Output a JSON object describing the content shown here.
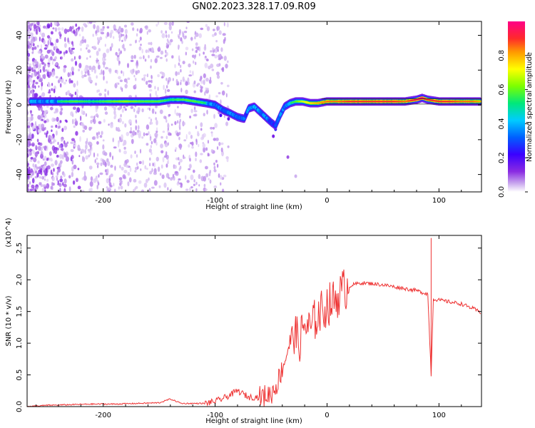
{
  "title": "GN02.2023.328.17.09.R09",
  "chart_data": [
    {
      "type": "heatmap",
      "xlabel": "Height of straight line (km)",
      "ylabel": "Frequency (Hz)",
      "xlim": [
        -268,
        138
      ],
      "ylim": [
        -50,
        48
      ],
      "x_ticks": [
        -200,
        -100,
        0,
        100
      ],
      "y_ticks": [
        -40,
        -20,
        0,
        20,
        40
      ],
      "colorbar": {
        "label": "Normalized spectral amplitude",
        "range": [
          0.0,
          1.0
        ],
        "ticks": [
          "0.0",
          "0.2",
          "0.4",
          "0.6",
          "0.8"
        ],
        "colormap": [
          "#ffffff",
          "#c9a8ee",
          "#8a2be2",
          "#3a00ff",
          "#0060ff",
          "#00ccff",
          "#00e87a",
          "#7cff00",
          "#ffff00",
          "#ff9a00",
          "#ff2a2a",
          "#ff0088"
        ]
      },
      "ridge": [
        {
          "x": -265,
          "y": 2,
          "v": 0.55
        },
        {
          "x": -255,
          "y": 2,
          "v": 0.5
        },
        {
          "x": -240,
          "y": 2,
          "v": 0.55
        },
        {
          "x": -225,
          "y": 2,
          "v": 0.6
        },
        {
          "x": -210,
          "y": 2,
          "v": 0.55
        },
        {
          "x": -195,
          "y": 2,
          "v": 0.6
        },
        {
          "x": -180,
          "y": 2,
          "v": 0.65
        },
        {
          "x": -165,
          "y": 2,
          "v": 0.6
        },
        {
          "x": -150,
          "y": 2,
          "v": 0.6
        },
        {
          "x": -140,
          "y": 3,
          "v": 0.55
        },
        {
          "x": -128,
          "y": 3,
          "v": 0.6
        },
        {
          "x": -118,
          "y": 2,
          "v": 0.6
        },
        {
          "x": -108,
          "y": 1,
          "v": 0.55
        },
        {
          "x": -100,
          "y": 0,
          "v": 0.5
        },
        {
          "x": -93,
          "y": -3,
          "v": 0.5
        },
        {
          "x": -86,
          "y": -5,
          "v": 0.5
        },
        {
          "x": -80,
          "y": -7,
          "v": 0.5
        },
        {
          "x": -74,
          "y": -8,
          "v": 0.45
        },
        {
          "x": -70,
          "y": -2,
          "v": 0.5
        },
        {
          "x": -65,
          "y": -1,
          "v": 0.55
        },
        {
          "x": -60,
          "y": -4,
          "v": 0.5
        },
        {
          "x": -55,
          "y": -7,
          "v": 0.5
        },
        {
          "x": -50,
          "y": -10,
          "v": 0.45
        },
        {
          "x": -46,
          "y": -12,
          "v": 0.4
        },
        {
          "x": -42,
          "y": -6,
          "v": 0.5
        },
        {
          "x": -38,
          "y": -1,
          "v": 0.5
        },
        {
          "x": -33,
          "y": 1,
          "v": 0.55
        },
        {
          "x": -28,
          "y": 2,
          "v": 0.6
        },
        {
          "x": -22,
          "y": 2,
          "v": 0.7
        },
        {
          "x": -15,
          "y": 1,
          "v": 0.75
        },
        {
          "x": -8,
          "y": 1,
          "v": 0.8
        },
        {
          "x": 0,
          "y": 2,
          "v": 0.85
        },
        {
          "x": 10,
          "y": 2,
          "v": 0.85
        },
        {
          "x": 20,
          "y": 2,
          "v": 0.9
        },
        {
          "x": 30,
          "y": 2,
          "v": 0.9
        },
        {
          "x": 40,
          "y": 2,
          "v": 0.9
        },
        {
          "x": 50,
          "y": 2,
          "v": 0.9
        },
        {
          "x": 60,
          "y": 2,
          "v": 0.9
        },
        {
          "x": 70,
          "y": 2,
          "v": 0.85
        },
        {
          "x": 80,
          "y": 3,
          "v": 0.95
        },
        {
          "x": 85,
          "y": 4,
          "v": 1.0
        },
        {
          "x": 90,
          "y": 3,
          "v": 0.9
        },
        {
          "x": 100,
          "y": 2,
          "v": 0.9
        },
        {
          "x": 110,
          "y": 2,
          "v": 0.9
        },
        {
          "x": 120,
          "y": 2,
          "v": 0.85
        },
        {
          "x": 130,
          "y": 2,
          "v": 0.85
        },
        {
          "x": 137,
          "y": 2,
          "v": 0.8
        }
      ]
    },
    {
      "type": "line",
      "xlabel": "Height of straight line (km)",
      "ylabel": "SNR (10 * v/v)",
      "y_multiplier": "(x10^4)",
      "xlim": [
        -268,
        138
      ],
      "ylim": [
        0.0,
        2.7
      ],
      "x_ticks": [
        -200,
        -100,
        0,
        100
      ],
      "y_ticks": [
        0.0,
        0.5,
        1.0,
        1.5,
        2.0,
        2.5
      ],
      "color": "#ee3333",
      "series": [
        {
          "x": [
            -268,
            -250,
            -230,
            -210,
            -190,
            -170,
            -150,
            -140,
            -130,
            -110,
            -100,
            -90,
            -80,
            -70,
            -60,
            -50,
            -45,
            -40,
            -35,
            -30,
            -25,
            -20,
            -15,
            -10,
            -5,
            0,
            5,
            10,
            15,
            20,
            25,
            30,
            40,
            50,
            60,
            70,
            80,
            85,
            90,
            93,
            95,
            100,
            110,
            120,
            130,
            138
          ],
          "y": [
            0.0,
            0.02,
            0.03,
            0.04,
            0.04,
            0.05,
            0.06,
            0.12,
            0.05,
            0.05,
            0.08,
            0.15,
            0.25,
            0.15,
            0.15,
            0.2,
            0.35,
            0.6,
            0.9,
            1.2,
            1.0,
            1.3,
            1.2,
            1.4,
            1.5,
            1.6,
            1.65,
            1.75,
            1.85,
            1.9,
            1.93,
            1.95,
            1.94,
            1.92,
            1.89,
            1.86,
            1.83,
            1.8,
            1.78,
            0.5,
            1.7,
            1.68,
            1.65,
            1.62,
            1.55,
            1.48
          ]
        }
      ]
    }
  ]
}
